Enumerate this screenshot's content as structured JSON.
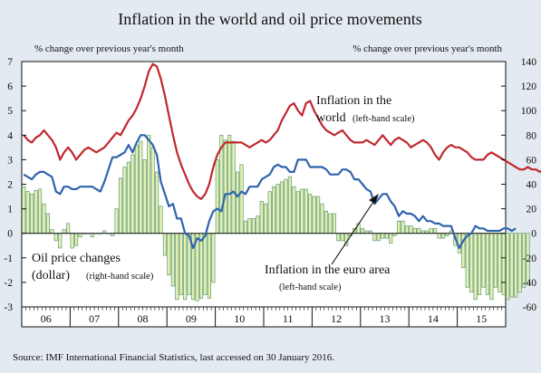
{
  "chart_data": {
    "type": "line",
    "title": "Inflation in the world and oil price movements",
    "left_axis_label": "% change over previous year's month",
    "right_axis_label": "% change over previous year's month",
    "ylim_left": [
      -3,
      7
    ],
    "ylim_right": [
      -60,
      140
    ],
    "left_ticks": [
      "7",
      "6",
      "5",
      "4",
      "3",
      "2",
      "1",
      "0",
      "-1",
      "-2",
      "-3"
    ],
    "right_ticks": [
      "140",
      "120",
      "100",
      "80",
      "60",
      "40",
      "20",
      "0",
      "-20",
      "-40",
      "-60"
    ],
    "x_categories": [
      "06",
      "07",
      "08",
      "09",
      "10",
      "11",
      "12",
      "13",
      "14",
      "15"
    ],
    "x_range": [
      "2006-01",
      "2015-12"
    ],
    "grid": false,
    "colors": {
      "world": "#c0282d",
      "euro": "#2f63ad",
      "oil_fill": "#e6efb4",
      "oil_stroke": "#5a9a74",
      "oil_label": "#3a9a86",
      "euro_label": "#2f63ad",
      "world_label": "#c0282d",
      "background": "#e4eaf2",
      "plot_background": "#ffffff"
    },
    "series": [
      {
        "name": "Inflation in the world",
        "note": "(left-hand scale)",
        "axis": "left",
        "kind": "line",
        "monthly_values": [
          4.0,
          3.8,
          3.7,
          3.9,
          4.0,
          4.2,
          4.0,
          3.8,
          3.5,
          3.0,
          3.3,
          3.5,
          3.3,
          3.0,
          3.2,
          3.4,
          3.5,
          3.4,
          3.3,
          3.4,
          3.5,
          3.7,
          3.9,
          4.1,
          4.0,
          4.3,
          4.6,
          4.8,
          5.1,
          5.5,
          6.0,
          6.6,
          6.9,
          6.8,
          6.3,
          5.6,
          4.8,
          4.0,
          3.3,
          2.8,
          2.4,
          2.0,
          1.7,
          1.5,
          1.4,
          1.6,
          2.0,
          2.7,
          3.2,
          3.5,
          3.7,
          3.7,
          3.7,
          3.7,
          3.7,
          3.6,
          3.5,
          3.6,
          3.7,
          3.8,
          3.7,
          3.8,
          4.0,
          4.2,
          4.6,
          4.9,
          5.2,
          5.3,
          5.0,
          4.8,
          5.3,
          5.4,
          5.0,
          4.7,
          4.4,
          4.2,
          4.1,
          4.0,
          4.1,
          4.2,
          4.0,
          3.8,
          3.7,
          3.7,
          3.7,
          3.8,
          3.7,
          3.6,
          3.8,
          4.0,
          3.8,
          3.6,
          3.8,
          3.9,
          3.8,
          3.7,
          3.5,
          3.6,
          3.7,
          3.8,
          3.7,
          3.5,
          3.2,
          3.0,
          3.3,
          3.5,
          3.6,
          3.5,
          3.5,
          3.4,
          3.3,
          3.1,
          3.0,
          3.0,
          3.0,
          3.2,
          3.3,
          3.2,
          3.1,
          3.0,
          2.9,
          2.8,
          2.7,
          2.6,
          2.6,
          2.7,
          2.6,
          2.6,
          2.5,
          2.6,
          2.5,
          2.5,
          2.6,
          2.7,
          2.6,
          2.6,
          2.5,
          2.5,
          2.6,
          2.5
        ]
      },
      {
        "name": "Inflation in the euro area",
        "note": "(left-hand scale)",
        "axis": "left",
        "kind": "line",
        "monthly_values": [
          2.4,
          2.3,
          2.2,
          2.4,
          2.5,
          2.5,
          2.4,
          2.3,
          1.7,
          1.6,
          1.9,
          1.9,
          1.8,
          1.8,
          1.9,
          1.9,
          1.9,
          1.9,
          1.8,
          1.7,
          2.1,
          2.6,
          3.1,
          3.1,
          3.2,
          3.3,
          3.6,
          3.3,
          3.7,
          4.0,
          4.0,
          3.8,
          3.6,
          3.2,
          2.1,
          1.6,
          1.1,
          1.2,
          0.6,
          0.6,
          0.0,
          -0.1,
          -0.6,
          -0.2,
          -0.3,
          -0.1,
          0.5,
          0.9,
          1.0,
          0.9,
          1.6,
          1.6,
          1.7,
          1.5,
          1.7,
          1.6,
          1.9,
          1.9,
          1.9,
          2.2,
          2.3,
          2.4,
          2.7,
          2.8,
          2.7,
          2.7,
          2.5,
          2.5,
          3.0,
          3.0,
          3.0,
          2.7,
          2.7,
          2.7,
          2.7,
          2.6,
          2.4,
          2.4,
          2.4,
          2.6,
          2.6,
          2.5,
          2.2,
          2.2,
          2.0,
          1.8,
          1.7,
          1.2,
          1.4,
          1.6,
          1.6,
          1.3,
          1.1,
          0.7,
          0.9,
          0.8,
          0.8,
          0.7,
          0.5,
          0.7,
          0.5,
          0.5,
          0.4,
          0.4,
          0.3,
          0.3,
          0.3,
          -0.2,
          -0.6,
          -0.3,
          -0.1,
          0.0,
          0.3,
          0.2,
          0.2,
          0.1,
          0.1,
          0.1,
          0.1,
          0.2,
          0.2,
          0.1,
          0.2
        ]
      },
      {
        "name": "Oil price changes (dollar)",
        "note": "(right-hand scale)",
        "axis": "right",
        "kind": "bar",
        "monthly_values": [
          38,
          34,
          32,
          35,
          36,
          24,
          16,
          3,
          -6,
          -12,
          3,
          8,
          -12,
          -10,
          -3,
          0,
          0,
          -3,
          0,
          0,
          2,
          0,
          -2,
          20,
          45,
          54,
          58,
          64,
          72,
          75,
          60,
          80,
          70,
          50,
          22,
          -18,
          -34,
          -43,
          -54,
          -50,
          -54,
          -50,
          -54,
          -55,
          -53,
          -50,
          -53,
          -40,
          60,
          80,
          76,
          80,
          75,
          50,
          56,
          10,
          12,
          12,
          14,
          26,
          24,
          34,
          38,
          40,
          42,
          44,
          46,
          38,
          34,
          36,
          36,
          32,
          30,
          30,
          24,
          18,
          16,
          16,
          -6,
          -6,
          -10,
          -2,
          4,
          8,
          4,
          2,
          2,
          -6,
          -6,
          -4,
          -4,
          -8,
          -2,
          10,
          10,
          6,
          6,
          4,
          4,
          2,
          2,
          4,
          4,
          -4,
          -4,
          -2,
          2,
          -10,
          -16,
          -28,
          -44,
          -48,
          -54,
          -50,
          -44,
          -50,
          -54,
          -44,
          -48,
          -50,
          -54,
          -52,
          -52,
          -48,
          -44,
          -40
        ]
      }
    ],
    "annotations": {
      "world_line1": "Inflation in the",
      "world_line2": "world",
      "world_note": "(left-hand scale)",
      "euro_line1": "Inflation in the euro area",
      "euro_note": "(left-hand scale)",
      "oil_line1": "Oil price changes",
      "oil_line2": "(dollar)",
      "oil_note": "(right-hand scale)"
    },
    "source": "Source: IMF International Financial Statistics, last accessed on 30 January 2016."
  }
}
